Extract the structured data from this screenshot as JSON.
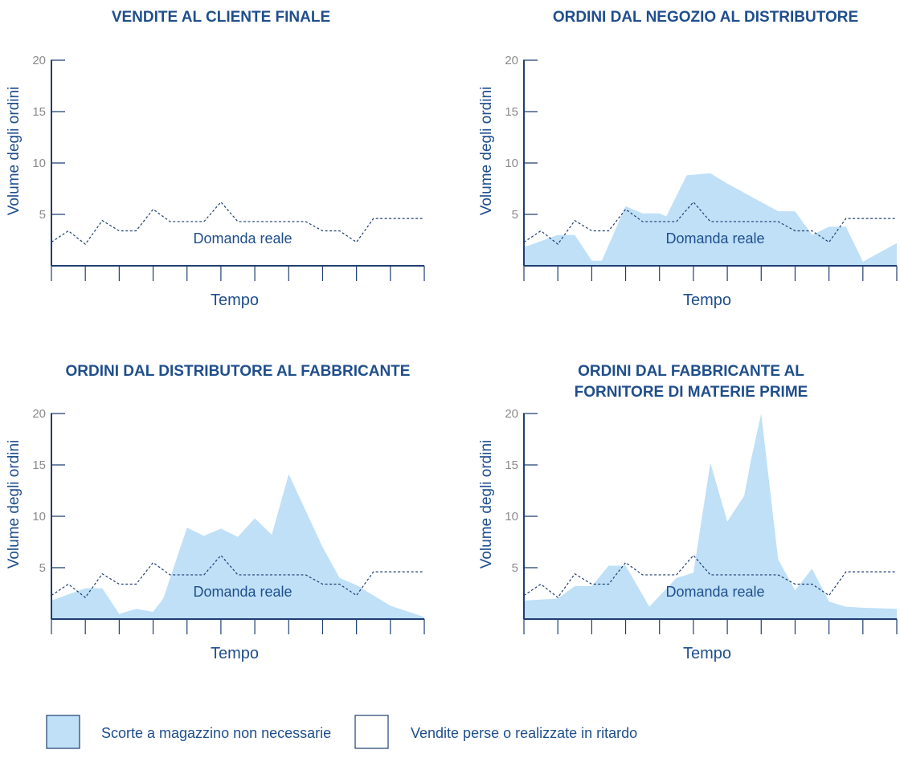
{
  "colors": {
    "text": "#1f4e8c",
    "axis": "#1f3e72",
    "tick_label": "#8a8a8a",
    "area_fill": "#bfe0f7",
    "demand_line": "#1f3e72"
  },
  "chart_data": [
    {
      "type": "area",
      "title": [
        "VENDITE AL CLIENTE FINALE"
      ],
      "ylabel": "Volume degli ordini",
      "xlabel": "Tempo",
      "ylim": [
        0,
        20
      ],
      "yticks": [
        5,
        10,
        15,
        20
      ],
      "xticks": 11,
      "annotation": "Domanda reale",
      "series": [
        {
          "kind": "dashed-line",
          "x": [
            0,
            0.5,
            1,
            1.5,
            2,
            2.5,
            3,
            3.5,
            4,
            4.5,
            5,
            5.5,
            6,
            6.5,
            7,
            7.5,
            8,
            8.5,
            9,
            9.5,
            10,
            10.5,
            11
          ],
          "values": [
            2.3,
            3.4,
            2.1,
            4.4,
            3.4,
            3.4,
            5.5,
            4.3,
            4.3,
            4.3,
            6.2,
            4.3,
            4.3,
            4.3,
            4.3,
            4.3,
            3.4,
            3.4,
            2.3,
            4.6,
            4.6,
            4.6,
            4.6
          ]
        }
      ]
    },
    {
      "type": "area",
      "title": [
        "ORDINI DAL NEGOZIO AL DISTRIBUTORE"
      ],
      "ylabel": "Volume degli ordini",
      "xlabel": "Tempo",
      "ylim": [
        0,
        20
      ],
      "yticks": [
        5,
        10,
        15,
        20
      ],
      "xticks": 11,
      "annotation": "Domanda reale",
      "series": [
        {
          "kind": "area",
          "legend": 0,
          "x": [
            0,
            1,
            1.5,
            2,
            2.3,
            3,
            3.5,
            4,
            4.2,
            4.8,
            5.5,
            6,
            7.5,
            8,
            8.5,
            9,
            9.5,
            10,
            11
          ],
          "values": [
            1.8,
            3.0,
            3.0,
            0.5,
            0.5,
            5.8,
            5.1,
            5.1,
            4.8,
            8.8,
            9.0,
            8.0,
            5.3,
            5.3,
            3.0,
            3.8,
            3.8,
            0.4,
            2.2
          ]
        },
        {
          "kind": "dashed-line",
          "x": [
            0,
            0.5,
            1,
            1.5,
            2,
            2.5,
            3,
            3.5,
            4,
            4.5,
            5,
            5.5,
            6,
            6.5,
            7,
            7.5,
            8,
            8.5,
            9,
            9.5,
            10,
            10.5,
            11
          ],
          "values": [
            2.3,
            3.4,
            2.1,
            4.4,
            3.4,
            3.4,
            5.5,
            4.3,
            4.3,
            4.3,
            6.2,
            4.3,
            4.3,
            4.3,
            4.3,
            4.3,
            3.4,
            3.4,
            2.3,
            4.6,
            4.6,
            4.6,
            4.6
          ]
        }
      ]
    },
    {
      "type": "area",
      "title": [
        "ORDINI DAL DISTRIBUTORE AL FABBRICANTE"
      ],
      "ylabel": "Volume degli ordini",
      "xlabel": "Tempo",
      "ylim": [
        0,
        20
      ],
      "yticks": [
        5,
        10,
        15,
        20
      ],
      "xticks": 11,
      "annotation": "Domanda reale",
      "series": [
        {
          "kind": "area",
          "legend": 0,
          "x": [
            0,
            1,
            1.5,
            2,
            2.5,
            3,
            3.3,
            4,
            4.5,
            5,
            5.5,
            6,
            6.5,
            7,
            8,
            8.5,
            9,
            10,
            11
          ],
          "values": [
            1.8,
            3.0,
            3.0,
            0.5,
            1.0,
            0.7,
            2.0,
            8.9,
            8.1,
            8.8,
            8.0,
            9.8,
            8.2,
            14.1,
            7.0,
            4.0,
            3.3,
            1.3,
            0.2
          ]
        },
        {
          "kind": "dashed-line",
          "x": [
            0,
            0.5,
            1,
            1.5,
            2,
            2.5,
            3,
            3.5,
            4,
            4.5,
            5,
            5.5,
            6,
            6.5,
            7,
            7.5,
            8,
            8.5,
            9,
            9.5,
            10,
            10.5,
            11
          ],
          "values": [
            2.3,
            3.4,
            2.1,
            4.4,
            3.4,
            3.4,
            5.5,
            4.3,
            4.3,
            4.3,
            6.2,
            4.3,
            4.3,
            4.3,
            4.3,
            4.3,
            3.4,
            3.4,
            2.3,
            4.6,
            4.6,
            4.6,
            4.6
          ]
        }
      ]
    },
    {
      "type": "area",
      "title": [
        "ORDINI DAL FABBRICANTE AL",
        "FORNITORE DI MATERIE PRIME"
      ],
      "ylabel": "Volume degli ordini",
      "xlabel": "Tempo",
      "ylim": [
        0,
        20
      ],
      "yticks": [
        5,
        10,
        15,
        20
      ],
      "xticks": 11,
      "annotation": "Domanda reale",
      "series": [
        {
          "kind": "area",
          "legend": 0,
          "x": [
            0,
            1,
            1.5,
            2,
            2.5,
            3,
            3.7,
            4.5,
            5,
            5.5,
            6,
            6.5,
            6.7,
            7,
            7.5,
            8,
            8.5,
            9,
            9.5,
            10,
            11
          ],
          "values": [
            1.8,
            2.0,
            3.2,
            3.2,
            5.2,
            5.2,
            1.2,
            4.0,
            4.5,
            15.2,
            9.5,
            12.0,
            15.5,
            20.0,
            5.8,
            2.8,
            4.9,
            1.7,
            1.2,
            1.1,
            1.0
          ]
        },
        {
          "kind": "dashed-line",
          "x": [
            0,
            0.5,
            1,
            1.5,
            2,
            2.5,
            3,
            3.5,
            4,
            4.5,
            5,
            5.5,
            6,
            6.5,
            7,
            7.5,
            8,
            8.5,
            9,
            9.5,
            10,
            10.5,
            11
          ],
          "values": [
            2.3,
            3.4,
            2.1,
            4.4,
            3.4,
            3.4,
            5.5,
            4.3,
            4.3,
            4.3,
            6.2,
            4.3,
            4.3,
            4.3,
            4.3,
            4.3,
            3.4,
            3.4,
            2.3,
            4.6,
            4.6,
            4.6,
            4.6
          ]
        }
      ]
    }
  ],
  "legend": [
    {
      "label": "Scorte a magazzino non necessarie",
      "swatch": "filled"
    },
    {
      "label": "Vendite perse o realizzate in ritardo",
      "swatch": "empty"
    }
  ]
}
